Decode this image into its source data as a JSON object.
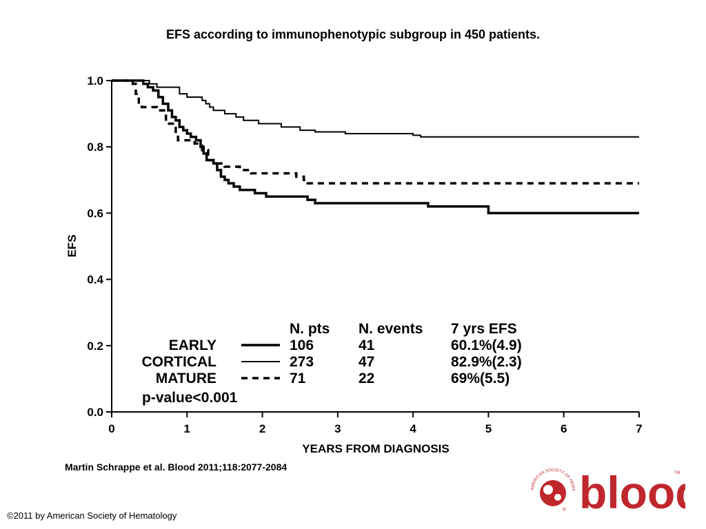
{
  "header": {
    "title": "EFS according to immunophenotypic subgroup in 450 patients."
  },
  "footer": {
    "citation": "Martin Schrappe et al. Blood 2011;118:2077-2084",
    "copyright": "©2011 by American Society of Hematology"
  },
  "logo": {
    "wordmark": "blood",
    "ring_text": "AMERICAN SOCIETY OF HEMATOLOGY",
    "trademark": "TM",
    "registered": "®",
    "color": "#c0272d"
  },
  "chart_data": {
    "type": "line",
    "title": "EFS according to immunophenotypic subgroup in 450 patients.",
    "xlabel": "YEARS FROM DIAGNOSIS",
    "ylabel": "EFS",
    "xlim": [
      0,
      7
    ],
    "ylim": [
      0,
      1
    ],
    "xticks": [
      0,
      1,
      2,
      3,
      4,
      5,
      6,
      7
    ],
    "yticks": [
      "0.0",
      "0.2",
      "0.4",
      "0.6",
      "0.8",
      "1.0"
    ],
    "grid": false,
    "step": true,
    "legend": {
      "placement": "bottom",
      "headers": [
        "N. pts",
        "N. events",
        "7 yrs EFS"
      ],
      "rows": [
        {
          "name": "EARLY",
          "n_pts": "106",
          "n_events": "41",
          "efs": "60.1%(4.9)",
          "style": "thick"
        },
        {
          "name": "CORTICAL",
          "n_pts": "273",
          "n_events": "47",
          "efs": "82.9%(2.3)",
          "style": "thin"
        },
        {
          "name": "MATURE",
          "n_pts": "71",
          "n_events": "22",
          "efs": "69%(5.5)",
          "style": "dashed"
        }
      ],
      "pvalue": "p-value<0.001"
    },
    "series": [
      {
        "name": "EARLY",
        "style": "thick",
        "points": [
          [
            0,
            1.0
          ],
          [
            0.38,
            1.0
          ],
          [
            0.42,
            0.99
          ],
          [
            0.48,
            0.98
          ],
          [
            0.55,
            0.97
          ],
          [
            0.62,
            0.95
          ],
          [
            0.68,
            0.93
          ],
          [
            0.75,
            0.91
          ],
          [
            0.8,
            0.89
          ],
          [
            0.85,
            0.88
          ],
          [
            0.9,
            0.86
          ],
          [
            0.95,
            0.85
          ],
          [
            1.0,
            0.84
          ],
          [
            1.05,
            0.83
          ],
          [
            1.12,
            0.82
          ],
          [
            1.18,
            0.8
          ],
          [
            1.22,
            0.78
          ],
          [
            1.26,
            0.76
          ],
          [
            1.35,
            0.75
          ],
          [
            1.4,
            0.73
          ],
          [
            1.45,
            0.71
          ],
          [
            1.5,
            0.7
          ],
          [
            1.55,
            0.69
          ],
          [
            1.62,
            0.68
          ],
          [
            1.7,
            0.67
          ],
          [
            1.9,
            0.66
          ],
          [
            2.05,
            0.65
          ],
          [
            2.45,
            0.65
          ],
          [
            2.6,
            0.64
          ],
          [
            2.7,
            0.63
          ],
          [
            4.2,
            0.62
          ],
          [
            5.0,
            0.6
          ],
          [
            7.0,
            0.6
          ]
        ]
      },
      {
        "name": "CORTICAL",
        "style": "thin",
        "points": [
          [
            0,
            1.0
          ],
          [
            0.5,
            0.99
          ],
          [
            0.6,
            0.98
          ],
          [
            0.8,
            0.98
          ],
          [
            0.9,
            0.96
          ],
          [
            1.0,
            0.95
          ],
          [
            1.1,
            0.95
          ],
          [
            1.2,
            0.94
          ],
          [
            1.25,
            0.93
          ],
          [
            1.3,
            0.92
          ],
          [
            1.35,
            0.91
          ],
          [
            1.5,
            0.9
          ],
          [
            1.65,
            0.89
          ],
          [
            1.75,
            0.88
          ],
          [
            1.95,
            0.87
          ],
          [
            2.25,
            0.86
          ],
          [
            2.5,
            0.85
          ],
          [
            2.7,
            0.845
          ],
          [
            3.1,
            0.84
          ],
          [
            4.0,
            0.835
          ],
          [
            4.1,
            0.83
          ],
          [
            7.0,
            0.83
          ]
        ]
      },
      {
        "name": "MATURE",
        "style": "dashed",
        "points": [
          [
            0,
            1.0
          ],
          [
            0.28,
            0.99
          ],
          [
            0.32,
            0.96
          ],
          [
            0.36,
            0.93
          ],
          [
            0.4,
            0.92
          ],
          [
            0.6,
            0.91
          ],
          [
            0.72,
            0.87
          ],
          [
            0.85,
            0.84
          ],
          [
            0.88,
            0.82
          ],
          [
            1.1,
            0.81
          ],
          [
            1.2,
            0.79
          ],
          [
            1.28,
            0.76
          ],
          [
            1.4,
            0.75
          ],
          [
            1.5,
            0.74
          ],
          [
            1.6,
            0.74
          ],
          [
            1.7,
            0.73
          ],
          [
            1.85,
            0.72
          ],
          [
            2.3,
            0.72
          ],
          [
            2.45,
            0.71
          ],
          [
            2.55,
            0.7
          ],
          [
            2.6,
            0.69
          ],
          [
            7.0,
            0.69
          ]
        ]
      }
    ]
  }
}
